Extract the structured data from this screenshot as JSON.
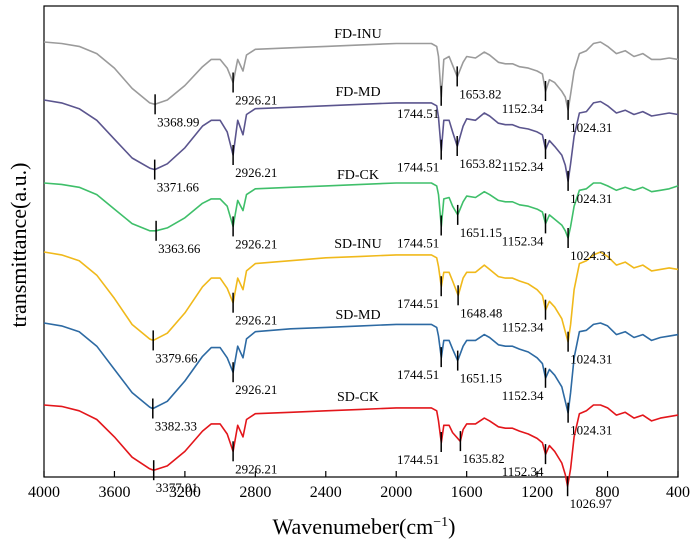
{
  "chart_data": {
    "type": "line",
    "title": "",
    "xlabel": "Wavenumeber(cm",
    "xlabel_sup": "−1",
    "xlabel_close": ")",
    "ylabel": "transmittance(a.u.)",
    "xlim": [
      4000,
      400
    ],
    "x_reversed": true,
    "xticks": [
      4000,
      3600,
      3200,
      2800,
      2400,
      2000,
      1600,
      1200,
      800,
      400
    ],
    "yticks": [],
    "grid": false,
    "legend": "inline labels above each curve",
    "series": [
      {
        "name": "FD-INU",
        "color": "#9b9b9b",
        "offset": 0,
        "slot": 0,
        "x": [
          4000,
          3900,
          3800,
          3700,
          3600,
          3500,
          3400,
          3370,
          3300,
          3200,
          3100,
          3050,
          3000,
          2960,
          2926,
          2900,
          2870,
          2850,
          2800,
          2600,
          2400,
          2200,
          2000,
          1800,
          1770,
          1760,
          1744,
          1730,
          1700,
          1680,
          1653,
          1620,
          1600,
          1550,
          1500,
          1470,
          1420,
          1380,
          1340,
          1300,
          1250,
          1200,
          1170,
          1152,
          1130,
          1100,
          1060,
          1040,
          1024,
          1010,
          990,
          960,
          920,
          880,
          840,
          800,
          750,
          700,
          650,
          600,
          550,
          500,
          450,
          400
        ],
        "y": [
          0,
          1,
          3,
          8,
          18,
          32,
          42,
          43,
          40,
          30,
          17,
          12,
          12,
          18,
          28,
          12,
          20,
          9,
          5,
          4,
          3,
          2,
          1,
          1,
          3,
          10,
          38,
          12,
          10,
          16,
          24,
          14,
          10,
          11,
          7,
          9,
          14,
          15,
          15,
          17,
          18,
          20,
          22,
          34,
          26,
          28,
          34,
          38,
          47,
          36,
          20,
          8,
          6,
          1,
          0,
          3,
          8,
          6,
          10,
          8,
          12,
          12,
          11,
          12
        ]
      },
      {
        "name": "FD-MD",
        "color": "#5b558e",
        "offset": 0,
        "slot": 1,
        "x": [
          4000,
          3900,
          3800,
          3700,
          3600,
          3500,
          3400,
          3371,
          3300,
          3200,
          3100,
          3050,
          3000,
          2960,
          2926,
          2900,
          2870,
          2850,
          2800,
          2600,
          2400,
          2200,
          2000,
          1800,
          1770,
          1760,
          1744,
          1730,
          1700,
          1680,
          1653,
          1620,
          1600,
          1550,
          1500,
          1470,
          1420,
          1380,
          1340,
          1300,
          1250,
          1200,
          1170,
          1152,
          1130,
          1100,
          1060,
          1040,
          1024,
          1010,
          990,
          960,
          920,
          880,
          840,
          800,
          750,
          700,
          650,
          600,
          550,
          500,
          450,
          400
        ],
        "y": [
          0,
          2,
          6,
          14,
          27,
          40,
          47,
          48,
          44,
          33,
          18,
          14,
          14,
          22,
          38,
          14,
          24,
          10,
          6,
          5,
          4,
          3,
          2,
          2,
          4,
          12,
          35,
          14,
          14,
          22,
          32,
          18,
          13,
          14,
          9,
          11,
          16,
          17,
          17,
          19,
          20,
          22,
          24,
          34,
          28,
          32,
          38,
          45,
          56,
          44,
          25,
          9,
          8,
          2,
          1,
          4,
          9,
          7,
          10,
          8,
          11,
          10,
          9,
          10
        ]
      },
      {
        "name": "FD-CK",
        "color": "#3fbf6a",
        "offset": 0,
        "slot": 2,
        "x": [
          4000,
          3900,
          3800,
          3700,
          3600,
          3500,
          3400,
          3364,
          3300,
          3200,
          3100,
          3050,
          3000,
          2960,
          2926,
          2900,
          2870,
          2850,
          2800,
          2600,
          2400,
          2200,
          2000,
          1800,
          1770,
          1760,
          1744,
          1730,
          1700,
          1680,
          1651,
          1620,
          1600,
          1550,
          1500,
          1470,
          1420,
          1380,
          1340,
          1300,
          1250,
          1200,
          1170,
          1152,
          1130,
          1100,
          1060,
          1040,
          1024,
          1010,
          990,
          960,
          920,
          880,
          840,
          800,
          750,
          700,
          650,
          600,
          550,
          500,
          450,
          400
        ],
        "y": [
          0,
          1,
          3,
          8,
          18,
          28,
          33,
          33,
          31,
          24,
          14,
          11,
          11,
          16,
          30,
          12,
          19,
          8,
          4,
          3,
          2,
          1,
          0,
          0,
          2,
          8,
          30,
          11,
          10,
          16,
          22,
          13,
          9,
          10,
          6,
          8,
          12,
          13,
          13,
          15,
          16,
          18,
          20,
          28,
          22,
          25,
          29,
          33,
          38,
          30,
          16,
          5,
          4,
          0,
          0,
          2,
          5,
          3,
          5,
          3,
          6,
          5,
          4,
          2
        ]
      },
      {
        "name": "SD-INU",
        "color": "#f0b91b",
        "offset": 0,
        "slot": 3,
        "x": [
          4000,
          3900,
          3800,
          3700,
          3600,
          3500,
          3400,
          3380,
          3300,
          3200,
          3100,
          3050,
          3000,
          2960,
          2926,
          2900,
          2870,
          2850,
          2800,
          2600,
          2400,
          2200,
          2000,
          1800,
          1770,
          1760,
          1744,
          1730,
          1700,
          1680,
          1648,
          1620,
          1600,
          1550,
          1500,
          1470,
          1420,
          1380,
          1340,
          1300,
          1250,
          1200,
          1170,
          1152,
          1130,
          1100,
          1060,
          1040,
          1024,
          1010,
          990,
          960,
          920,
          880,
          840,
          800,
          750,
          700,
          650,
          600,
          550,
          500,
          450,
          400
        ],
        "y": [
          0,
          2,
          6,
          16,
          32,
          50,
          60,
          61,
          56,
          42,
          24,
          18,
          18,
          25,
          35,
          18,
          26,
          13,
          8,
          6,
          4,
          3,
          2,
          2,
          4,
          10,
          24,
          14,
          14,
          20,
          30,
          18,
          14,
          14,
          9,
          12,
          17,
          18,
          18,
          20,
          22,
          26,
          30,
          40,
          34,
          38,
          46,
          55,
          62,
          50,
          26,
          8,
          6,
          2,
          0,
          3,
          9,
          7,
          11,
          9,
          13,
          12,
          11,
          12
        ]
      },
      {
        "name": "SD-MD",
        "color": "#2d6aa3",
        "offset": 0,
        "slot": 4,
        "x": [
          4000,
          3900,
          3800,
          3700,
          3600,
          3500,
          3400,
          3382,
          3300,
          3200,
          3100,
          3050,
          3000,
          2960,
          2926,
          2900,
          2870,
          2850,
          2800,
          2600,
          2400,
          2200,
          2000,
          1800,
          1770,
          1760,
          1744,
          1730,
          1700,
          1680,
          1651,
          1620,
          1600,
          1550,
          1500,
          1470,
          1420,
          1380,
          1340,
          1300,
          1250,
          1200,
          1170,
          1152,
          1130,
          1100,
          1060,
          1040,
          1024,
          1010,
          990,
          960,
          920,
          880,
          840,
          800,
          750,
          700,
          650,
          600,
          550,
          500,
          450,
          400
        ],
        "y": [
          0,
          2,
          6,
          16,
          32,
          48,
          58,
          59,
          54,
          40,
          23,
          17,
          17,
          24,
          34,
          16,
          24,
          11,
          6,
          4,
          3,
          2,
          1,
          1,
          3,
          9,
          24,
          12,
          12,
          18,
          26,
          16,
          12,
          12,
          8,
          10,
          15,
          16,
          16,
          18,
          20,
          24,
          28,
          38,
          32,
          36,
          44,
          54,
          62,
          48,
          24,
          6,
          5,
          1,
          0,
          2,
          8,
          6,
          10,
          8,
          12,
          10,
          9,
          8
        ]
      },
      {
        "name": "SD-CK",
        "color": "#e3161b",
        "offset": 0,
        "slot": 5,
        "x": [
          4000,
          3900,
          3800,
          3700,
          3600,
          3500,
          3400,
          3377,
          3300,
          3200,
          3100,
          3050,
          3000,
          2960,
          2926,
          2900,
          2870,
          2850,
          2800,
          2600,
          2400,
          2200,
          2000,
          1800,
          1770,
          1760,
          1744,
          1730,
          1700,
          1680,
          1636,
          1620,
          1600,
          1550,
          1500,
          1470,
          1420,
          1380,
          1340,
          1300,
          1250,
          1200,
          1170,
          1152,
          1130,
          1100,
          1060,
          1040,
          1027,
          1010,
          990,
          960,
          920,
          880,
          840,
          800,
          750,
          700,
          650,
          600,
          550,
          500,
          450,
          400
        ],
        "y": [
          0,
          1,
          4,
          10,
          22,
          36,
          44,
          45,
          42,
          32,
          18,
          13,
          13,
          20,
          32,
          14,
          22,
          10,
          6,
          5,
          4,
          3,
          2,
          2,
          4,
          11,
          26,
          14,
          14,
          19,
          25,
          17,
          13,
          13,
          9,
          11,
          15,
          16,
          16,
          18,
          20,
          23,
          26,
          34,
          28,
          32,
          40,
          48,
          56,
          44,
          22,
          6,
          4,
          0,
          0,
          2,
          7,
          5,
          9,
          7,
          11,
          9,
          8,
          7
        ]
      }
    ]
  },
  "series_labels": [
    "FD-INU",
    "FD-MD",
    "FD-CK",
    "SD-INU",
    "SD-MD",
    "SD-CK"
  ],
  "peak_labels": [
    [
      "3368.99",
      "2926.21",
      "1744.51",
      "1653.82",
      "1152.34",
      "1024.31"
    ],
    [
      "3371.66",
      "2926.21",
      "1744.51",
      "1653.82",
      "1152.34",
      "1024.31"
    ],
    [
      "3363.66",
      "2926.21",
      "1744.51",
      "1651.15",
      "1152.34",
      "1024.31"
    ],
    [
      "3379.66",
      "2926.21",
      "1744.51",
      "1648.48",
      "1152.34",
      "1024.31"
    ],
    [
      "3382.33",
      "2926.21",
      "1744.51",
      "1651.15",
      "1152.34",
      "1024.31"
    ],
    [
      "3377.01",
      "2926.21",
      "1744.51",
      "1635.82",
      "1152.34",
      "1026.97"
    ]
  ],
  "peak_positions": [
    [
      3368.99,
      2926.21,
      1744.51,
      1653.82,
      1152.34,
      1024.31
    ],
    [
      3371.66,
      2926.21,
      1744.51,
      1653.82,
      1152.34,
      1024.31
    ],
    [
      3363.66,
      2926.21,
      1744.51,
      1651.15,
      1152.34,
      1024.31
    ],
    [
      3379.66,
      2926.21,
      1744.51,
      1648.48,
      1152.34,
      1024.31
    ],
    [
      3382.33,
      2926.21,
      1744.51,
      1651.15,
      1152.34,
      1024.31
    ],
    [
      3377.01,
      2926.21,
      1744.51,
      1635.82,
      1152.34,
      1026.97
    ]
  ]
}
